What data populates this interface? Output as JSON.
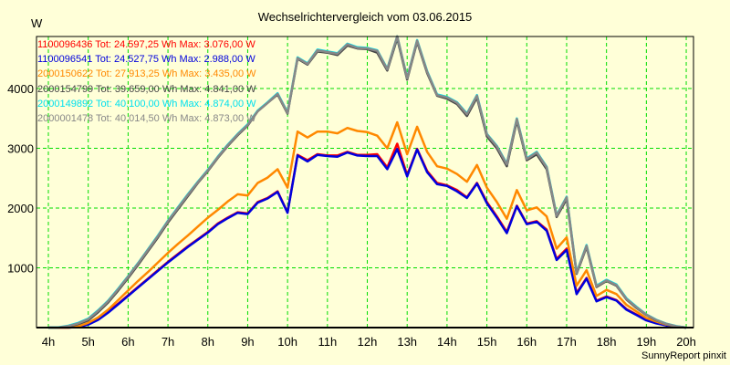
{
  "chart_data": {
    "type": "line",
    "title": "Wechselrichtervergleich vom 03.06.2015",
    "ylabel": "W",
    "xlabel": "",
    "credit": "SunnyReport pinxit",
    "ylim": [
      0,
      4870
    ],
    "xlim": [
      4,
      20
    ],
    "grid": true,
    "legend_position": "top-left inside",
    "x_ticks": [
      "4h",
      "5h",
      "6h",
      "7h",
      "8h",
      "9h",
      "10h",
      "11h",
      "12h",
      "13h",
      "14h",
      "15h",
      "16h",
      "17h",
      "18h",
      "19h",
      "20h"
    ],
    "y_ticks": [
      1000,
      2000,
      3000,
      4000
    ],
    "x_hours": [
      4,
      4.25,
      4.5,
      4.75,
      5,
      5.25,
      5.5,
      5.75,
      6,
      6.25,
      6.5,
      6.75,
      7,
      7.25,
      7.5,
      7.75,
      8,
      8.25,
      8.5,
      8.75,
      9,
      9.25,
      9.5,
      9.75,
      10,
      10.25,
      10.5,
      10.75,
      11,
      11.25,
      11.5,
      11.75,
      12,
      12.25,
      12.5,
      12.75,
      13,
      13.25,
      13.5,
      13.75,
      14,
      14.25,
      14.5,
      14.75,
      15,
      15.25,
      15.5,
      15.75,
      16,
      16.25,
      16.5,
      16.75,
      17,
      17.25,
      17.5,
      17.75,
      18,
      18.25,
      18.5,
      18.75,
      19,
      19.25,
      19.5,
      19.75,
      20
    ],
    "series": [
      {
        "name": "1100096436",
        "color": "#ff0000",
        "total_wh": "24.597,25",
        "max_w": "3.076,00",
        "values": [
          0,
          0,
          0,
          10,
          60,
          140,
          270,
          400,
          540,
          680,
          820,
          960,
          1100,
          1230,
          1360,
          1480,
          1600,
          1740,
          1840,
          1930,
          1910,
          2100,
          2170,
          2280,
          1930,
          2890,
          2800,
          2900,
          2880,
          2880,
          2940,
          2890,
          2890,
          2900,
          2680,
          3076,
          2550,
          2990,
          2620,
          2420,
          2380,
          2300,
          2180,
          2420,
          2100,
          1860,
          1600,
          2040,
          1740,
          1780,
          1640,
          1150,
          1320,
          580,
          830,
          450,
          520,
          460,
          310,
          220,
          130,
          80,
          40,
          15,
          0
        ]
      },
      {
        "name": "1100096541",
        "color": "#0000dd",
        "total_wh": "24.527,75",
        "max_w": "2.988,00",
        "values": [
          0,
          0,
          0,
          10,
          50,
          130,
          250,
          390,
          530,
          670,
          810,
          950,
          1090,
          1220,
          1350,
          1470,
          1590,
          1730,
          1830,
          1920,
          1900,
          2090,
          2160,
          2270,
          1920,
          2880,
          2780,
          2890,
          2870,
          2860,
          2930,
          2880,
          2870,
          2870,
          2650,
          2988,
          2530,
          2980,
          2600,
          2400,
          2370,
          2280,
          2170,
          2410,
          2080,
          1840,
          1580,
          2030,
          1730,
          1770,
          1620,
          1130,
          1300,
          560,
          820,
          440,
          510,
          450,
          300,
          210,
          120,
          70,
          35,
          15,
          0
        ]
      },
      {
        "name": "2000150622",
        "color": "#ff8800",
        "total_wh": "27.913,25",
        "max_w": "3.435,00",
        "values": [
          0,
          0,
          0,
          20,
          80,
          170,
          300,
          460,
          620,
          780,
          930,
          1090,
          1250,
          1400,
          1540,
          1690,
          1840,
          1970,
          2110,
          2230,
          2210,
          2420,
          2510,
          2650,
          2340,
          3280,
          3180,
          3280,
          3280,
          3250,
          3340,
          3290,
          3270,
          3210,
          3000,
          3435,
          2900,
          3360,
          2940,
          2700,
          2660,
          2570,
          2440,
          2720,
          2340,
          2100,
          1820,
          2300,
          1960,
          2010,
          1860,
          1320,
          1510,
          700,
          960,
          530,
          630,
          560,
          380,
          270,
          160,
          100,
          50,
          20,
          0
        ]
      },
      {
        "name": "2000154799",
        "color": "#444444",
        "total_wh": "39.659,00",
        "max_w": "4.841,00",
        "values": [
          0,
          0,
          20,
          60,
          120,
          260,
          420,
          620,
          830,
          1050,
          1280,
          1510,
          1760,
          1980,
          2200,
          2420,
          2620,
          2840,
          3040,
          3220,
          3380,
          3620,
          3760,
          3900,
          3580,
          4500,
          4400,
          4620,
          4600,
          4560,
          4720,
          4670,
          4660,
          4600,
          4300,
          4841,
          4150,
          4780,
          4260,
          3880,
          3830,
          3740,
          3540,
          3850,
          3200,
          3000,
          2700,
          3460,
          2800,
          2900,
          2650,
          1850,
          2150,
          900,
          1350,
          680,
          780,
          700,
          470,
          330,
          210,
          120,
          60,
          20,
          0
        ]
      },
      {
        "name": "2000149892",
        "color": "#00e0ee",
        "total_wh": "40.100,00",
        "max_w": "4.874,00",
        "values": [
          0,
          5,
          30,
          80,
          150,
          290,
          450,
          650,
          860,
          1080,
          1310,
          1540,
          1790,
          2010,
          2230,
          2440,
          2640,
          2860,
          3060,
          3240,
          3400,
          3630,
          3770,
          3920,
          3600,
          4520,
          4420,
          4650,
          4620,
          4590,
          4750,
          4690,
          4680,
          4640,
          4330,
          4874,
          4180,
          4810,
          4290,
          3900,
          3860,
          3770,
          3580,
          3890,
          3240,
          3040,
          2740,
          3500,
          2830,
          2940,
          2690,
          1880,
          2190,
          920,
          1380,
          700,
          800,
          720,
          490,
          350,
          220,
          130,
          65,
          25,
          0
        ]
      },
      {
        "name": "2000001478",
        "color": "#888888",
        "total_wh": "40.014,50",
        "max_w": "4.873,00",
        "values": [
          0,
          0,
          25,
          70,
          140,
          280,
          440,
          640,
          850,
          1070,
          1300,
          1530,
          1780,
          2000,
          2220,
          2430,
          2630,
          2850,
          3050,
          3230,
          3390,
          3620,
          3760,
          3910,
          3590,
          4510,
          4410,
          4640,
          4610,
          4580,
          4740,
          4680,
          4670,
          4630,
          4320,
          4873,
          4170,
          4800,
          4280,
          3890,
          3850,
          3760,
          3570,
          3880,
          3230,
          3030,
          2730,
          3490,
          2820,
          2930,
          2680,
          1870,
          2180,
          910,
          1370,
          690,
          790,
          710,
          480,
          340,
          215,
          125,
          62,
          22,
          0
        ]
      }
    ]
  },
  "labels": {
    "title": "Wechselrichtervergleich vom 03.06.2015",
    "unit": "W",
    "credit": "SunnyReport pinxit",
    "tot_prefix": "Tot:",
    "wh_suffix": "Wh",
    "max_prefix": "Max:",
    "w_suffix": "W"
  },
  "legend": [
    {
      "text": "1100096436 Tot: 24.597,25 Wh Max: 3.076,00 W",
      "color": "#ff0000"
    },
    {
      "text": "1100096541 Tot: 24.527,75 Wh Max: 2.988,00 W",
      "color": "#0000dd"
    },
    {
      "text": "2000150622 Tot: 27.913,25 Wh Max: 3.435,00 W",
      "color": "#ff8800"
    },
    {
      "text": "2000154799 Tot: 39.659,00 Wh Max: 4.841,00 W",
      "color": "#444444"
    },
    {
      "text": "2000149892 Tot: 40.100,00 Wh Max: 4.874,00 W",
      "color": "#00e0ee"
    },
    {
      "text": "2000001478 Tot: 40.014,50 Wh Max: 4.873,00 W",
      "color": "#888888"
    }
  ],
  "colors": {
    "background": "#ffffd8",
    "grid": "#00dd00",
    "axis": "#000000"
  }
}
